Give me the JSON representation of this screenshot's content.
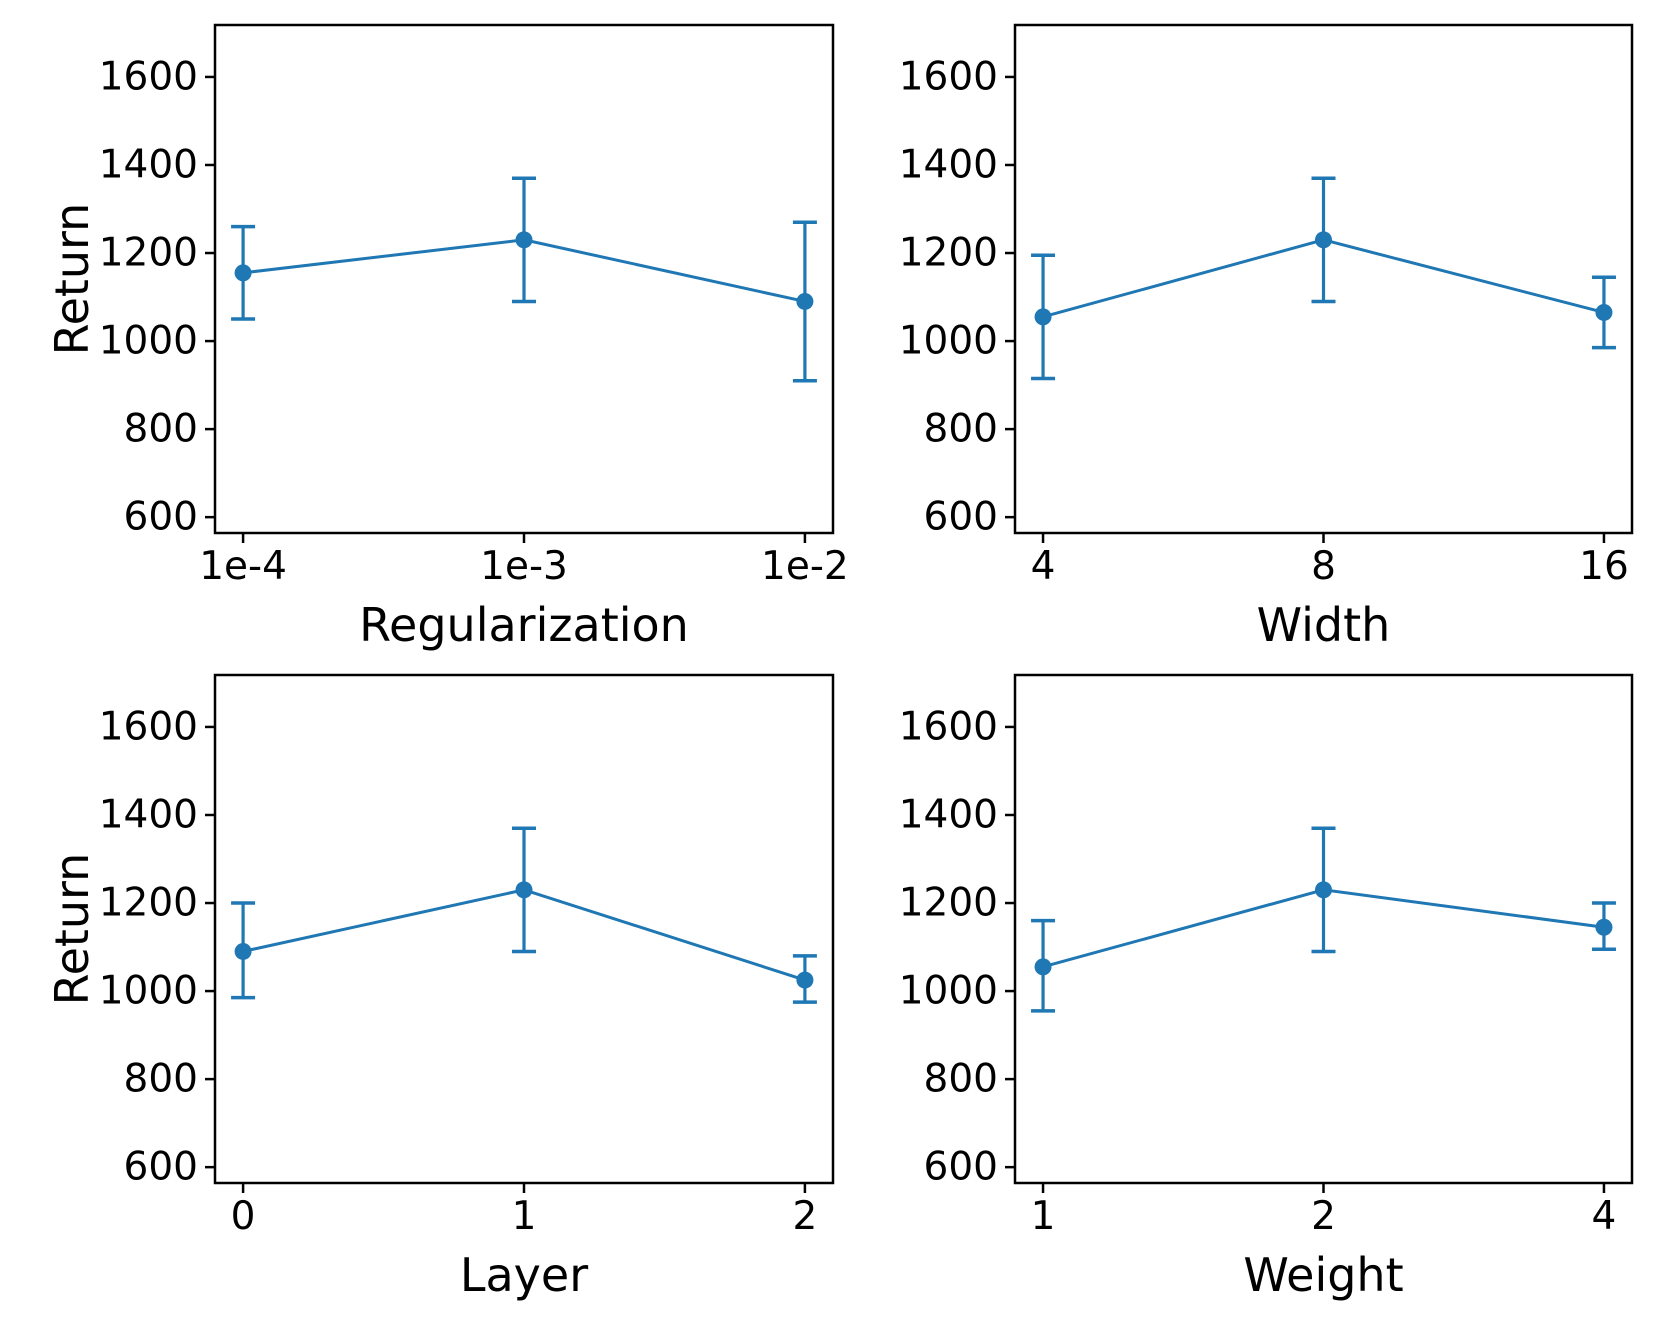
{
  "figure": {
    "background": "#ffffff",
    "accent_color": "#1f77b4",
    "spine_color": "#000000",
    "text_color": "#000000"
  },
  "chart_data": [
    {
      "type": "line",
      "title": "",
      "xlabel": "Regularization",
      "ylabel": "Return",
      "categories": [
        "1e-4",
        "1e-3",
        "1e-2"
      ],
      "series": [
        {
          "name": "Return",
          "values": [
            1155,
            1230,
            1090
          ],
          "err_low": [
            1050,
            1090,
            910
          ],
          "err_high": [
            1260,
            1370,
            1270
          ]
        }
      ],
      "yticks": [
        600,
        800,
        1000,
        1200,
        1400,
        1600
      ],
      "ylim": [
        564,
        1718
      ],
      "xlim_margin": 0.1,
      "grid": false,
      "legend": null,
      "marker": "circle",
      "error_caps": true
    },
    {
      "type": "line",
      "title": "",
      "xlabel": "Width",
      "ylabel": "",
      "categories": [
        "4",
        "8",
        "16"
      ],
      "series": [
        {
          "name": "Return",
          "values": [
            1055,
            1230,
            1065
          ],
          "err_low": [
            915,
            1090,
            985
          ],
          "err_high": [
            1195,
            1370,
            1145
          ]
        }
      ],
      "yticks": [
        600,
        800,
        1000,
        1200,
        1400,
        1600
      ],
      "ylim": [
        564,
        1718
      ],
      "xlim_margin": 0.1,
      "grid": false,
      "legend": null,
      "marker": "circle",
      "error_caps": true
    },
    {
      "type": "line",
      "title": "",
      "xlabel": "Layer",
      "ylabel": "Return",
      "categories": [
        "0",
        "1",
        "2"
      ],
      "series": [
        {
          "name": "Return",
          "values": [
            1090,
            1230,
            1025
          ],
          "err_low": [
            985,
            1090,
            975
          ],
          "err_high": [
            1200,
            1370,
            1080
          ]
        }
      ],
      "yticks": [
        600,
        800,
        1000,
        1200,
        1400,
        1600
      ],
      "ylim": [
        564,
        1718
      ],
      "xlim_margin": 0.1,
      "grid": false,
      "legend": null,
      "marker": "circle",
      "error_caps": true
    },
    {
      "type": "line",
      "title": "",
      "xlabel": "Weight",
      "ylabel": "",
      "categories": [
        "1",
        "2",
        "4"
      ],
      "series": [
        {
          "name": "Return",
          "values": [
            1055,
            1230,
            1145
          ],
          "err_low": [
            955,
            1090,
            1095
          ],
          "err_high": [
            1160,
            1370,
            1200
          ]
        }
      ],
      "yticks": [
        600,
        800,
        1000,
        1200,
        1400,
        1600
      ],
      "ylim": [
        564,
        1718
      ],
      "xlim_margin": 0.1,
      "grid": false,
      "legend": null,
      "marker": "circle",
      "error_caps": true
    }
  ]
}
